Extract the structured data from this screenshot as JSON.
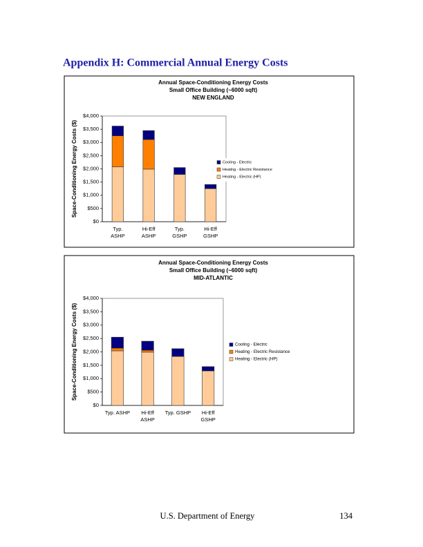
{
  "heading": "Appendix H:  Commercial Annual Energy Costs",
  "chart_data": [
    {
      "type": "bar",
      "stacked": true,
      "title": "Annual Space-Conditioning Energy Costs",
      "subtitles": [
        "Small Office Building (~6000 sqft)",
        "NEW ENGLAND"
      ],
      "y_label": "Space-Conditioning Energy Costs ($)",
      "categories": [
        "Typ.\nASHP",
        "Hi-Eff\nASHP",
        "Typ.\nGSHP",
        "Hi-Eff\nGSHP"
      ],
      "series": [
        {
          "name": "Heating - Electric (HP)",
          "color": "#ffcc99",
          "values": [
            2080,
            1990,
            1790,
            1250
          ]
        },
        {
          "name": "Heating - Electric Resistance",
          "color": "#ff8000",
          "values": [
            1170,
            1120,
            0,
            0
          ]
        },
        {
          "name": "Cooling - Electric",
          "color": "#000080",
          "values": [
            370,
            340,
            260,
            160
          ]
        }
      ],
      "ylim": [
        0,
        4000
      ],
      "yticks": [
        {
          "value": 0,
          "label": "$0"
        },
        {
          "value": 500,
          "label": "$500"
        },
        {
          "value": 1000,
          "label": "$1,000"
        },
        {
          "value": 1500,
          "label": "$1,500"
        },
        {
          "value": 2000,
          "label": "$2,000"
        },
        {
          "value": 2500,
          "label": "$2,500"
        },
        {
          "value": 3000,
          "label": "$3,000"
        },
        {
          "value": 3500,
          "label": "$3,500"
        },
        {
          "value": 4000,
          "label": "$4,000"
        }
      ],
      "grid": false,
      "legend": "right"
    },
    {
      "type": "bar",
      "stacked": true,
      "title": "Annual Space-Conditioning Energy Costs",
      "subtitles": [
        "Small Office Building (~6000 sqft)",
        "MID-ATLANTIC"
      ],
      "y_label": "Space-Conditioning Energy Costs ($)",
      "categories": [
        "Typ. ASHP",
        "Hi-Eff\nASHP",
        "Typ. GSHP",
        "Hi-Eff\nGSHP"
      ],
      "series": [
        {
          "name": "Heating - Electric (HP)",
          "color": "#ffcc99",
          "values": [
            2040,
            1990,
            1830,
            1290
          ]
        },
        {
          "name": "Heating - Electric Resistance",
          "color": "#ff8000",
          "values": [
            100,
            70,
            0,
            0
          ]
        },
        {
          "name": "Cooling - Electric",
          "color": "#000080",
          "values": [
            410,
            340,
            290,
            160
          ]
        }
      ],
      "ylim": [
        0,
        4000
      ],
      "yticks": [
        {
          "value": 0,
          "label": "$0"
        },
        {
          "value": 500,
          "label": "$500"
        },
        {
          "value": 1000,
          "label": "$1,000"
        },
        {
          "value": 1500,
          "label": "$1,500"
        },
        {
          "value": 2000,
          "label": "$2,000"
        },
        {
          "value": 2500,
          "label": "$2,500"
        },
        {
          "value": 3000,
          "label": "$3,000"
        },
        {
          "value": 3500,
          "label": "$3,500"
        },
        {
          "value": 4000,
          "label": "$4,000"
        }
      ],
      "grid": false,
      "legend": "right"
    }
  ],
  "footer": {
    "publisher": "U.S. Department of Energy",
    "page_number": "134"
  }
}
